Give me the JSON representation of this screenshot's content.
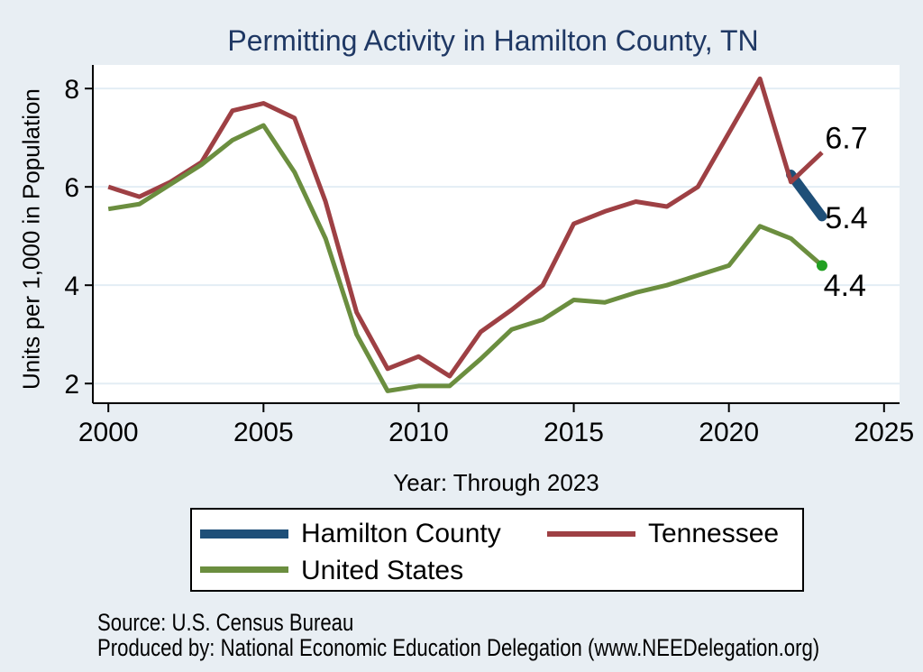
{
  "title": "Permitting Activity in Hamilton County, TN",
  "y_axis": {
    "title": "Units per 1,000 in Population",
    "ticks": [
      2,
      4,
      6,
      8
    ],
    "range": [
      1.6,
      8.48
    ]
  },
  "x_axis": {
    "title": "Year: Through 2023",
    "ticks": [
      2000,
      2005,
      2010,
      2015,
      2020,
      2025
    ],
    "range": [
      1999.5,
      2025.5
    ]
  },
  "chart_data": {
    "type": "line",
    "title": "Permitting Activity in Hamilton County, TN",
    "xlabel": "Year: Through 2023",
    "ylabel": "Units per 1,000 in Population",
    "grid": true,
    "legend_position": "bottom",
    "xlim": [
      1999.5,
      2025.5
    ],
    "ylim": [
      1.6,
      8.48
    ],
    "x": [
      2000,
      2001,
      2002,
      2003,
      2004,
      2005,
      2006,
      2007,
      2008,
      2009,
      2010,
      2011,
      2012,
      2013,
      2014,
      2015,
      2016,
      2017,
      2018,
      2019,
      2020,
      2021,
      2022,
      2023
    ],
    "series": [
      {
        "name": "Hamilton County",
        "color": "#1e4f78",
        "line_width": 11,
        "values": [
          null,
          null,
          null,
          null,
          null,
          null,
          null,
          null,
          null,
          null,
          null,
          null,
          null,
          null,
          null,
          null,
          null,
          null,
          null,
          null,
          null,
          null,
          6.25,
          5.4
        ]
      },
      {
        "name": "Tennessee",
        "color": "#9e4044",
        "line_width": 5,
        "values": [
          6.0,
          5.8,
          6.1,
          6.5,
          7.55,
          7.7,
          7.4,
          5.7,
          3.45,
          2.3,
          2.55,
          2.15,
          3.05,
          3.5,
          4.0,
          5.25,
          5.5,
          5.7,
          5.6,
          6.0,
          7.1,
          8.2,
          6.1,
          6.7
        ]
      },
      {
        "name": "United States",
        "color": "#6b8e3f",
        "line_width": 5,
        "end_marker_color": "#22a022",
        "values": [
          5.55,
          5.65,
          6.05,
          6.45,
          6.95,
          7.25,
          6.3,
          4.95,
          3.0,
          1.85,
          1.95,
          1.95,
          2.5,
          3.1,
          3.3,
          3.7,
          3.65,
          3.85,
          4.0,
          4.2,
          4.4,
          5.2,
          4.95,
          4.4
        ]
      }
    ],
    "end_labels": [
      {
        "text": "6.7",
        "year": 2023.1,
        "value": 7.0
      },
      {
        "text": "5.4",
        "year": 2023.1,
        "value": 5.38
      },
      {
        "text": "4.4",
        "year": 2023.05,
        "value": 4.0
      }
    ]
  },
  "legend": {
    "items": [
      {
        "label": "Hamilton County"
      },
      {
        "label": "Tennessee"
      },
      {
        "label": "United States"
      }
    ]
  },
  "notes": {
    "source": "Source: U.S. Census Bureau",
    "produced_by": "Produced by: National Economic Education Delegation (www.NEEDelegation.org)"
  },
  "colors": {
    "background": "#e8eef3",
    "plot_background": "#ffffff",
    "gridline": "#e3edf4",
    "axis": "#000000",
    "title": "#1f3864",
    "tick_label": "#000000"
  }
}
